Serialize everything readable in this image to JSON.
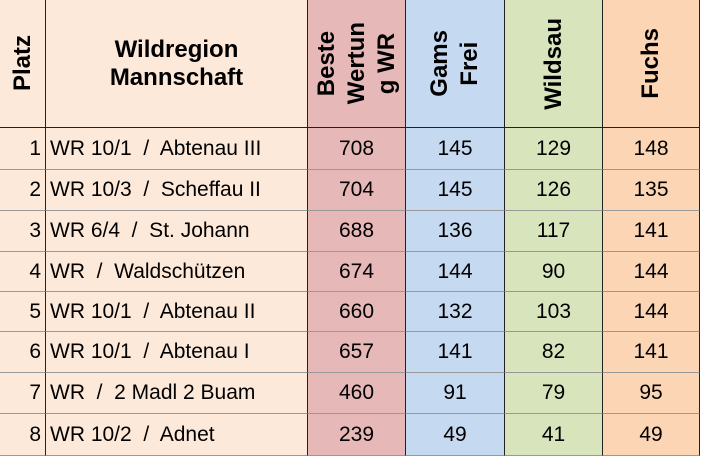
{
  "table": {
    "header": [
      {
        "lines": [
          "Platz"
        ]
      },
      {
        "lines": [
          "Wildregion",
          "Mannschaft"
        ]
      },
      {
        "lines": [
          "Beste",
          "Wertun",
          "g WR"
        ]
      },
      {
        "lines": [
          "Gams",
          "Frei"
        ]
      },
      {
        "lines": [
          "Wildsau"
        ]
      },
      {
        "lines": [
          "Fuchs"
        ]
      }
    ],
    "rows": [
      [
        1,
        "WR 10/1  /  Abtenau III",
        708,
        145,
        129,
        148
      ],
      [
        2,
        "WR 10/3  /  Scheffau II",
        704,
        145,
        126,
        135
      ],
      [
        3,
        "WR 6/4  /  St. Johann",
        688,
        136,
        117,
        141
      ],
      [
        4,
        "WR  /  Waldschützen",
        674,
        144,
        90,
        144
      ],
      [
        5,
        "WR 10/1  /  Abtenau II",
        660,
        132,
        103,
        144
      ],
      [
        6,
        "WR 10/1  /  Abtenau I",
        657,
        141,
        82,
        141
      ],
      [
        7,
        "WR  /  2 Madl 2 Buam",
        460,
        91,
        79,
        95
      ],
      [
        8,
        "WR 10/2  /  Adnet",
        239,
        49,
        41,
        49
      ]
    ]
  }
}
